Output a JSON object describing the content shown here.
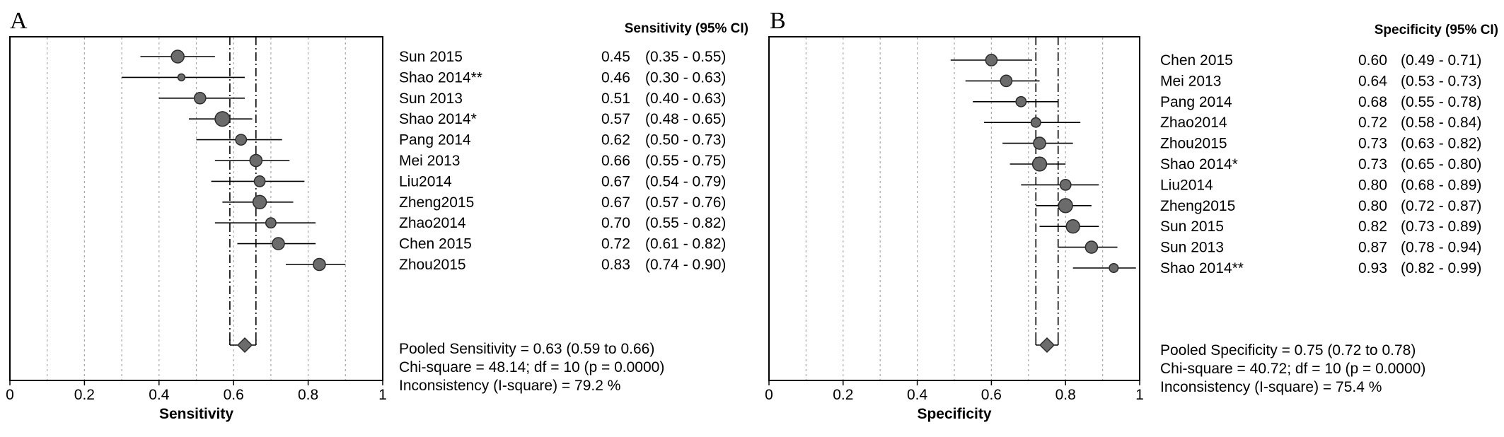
{
  "chart_data": [
    {
      "type": "forest",
      "panel_label": "A",
      "column_header": "Sensitivity (95% CI)",
      "xlabel": "Sensitivity",
      "xlim": [
        0,
        1
      ],
      "xticks": [
        "0",
        "0.2",
        "0.4",
        "0.6",
        "0.8",
        "1"
      ],
      "grid": true,
      "pooled": {
        "estimate": 0.63,
        "ci_low": 0.59,
        "ci_high": 0.66
      },
      "studies": [
        {
          "name": "Sun 2015",
          "value": "0.45",
          "ci": "(0.35 - 0.55)",
          "est": 0.45,
          "lo": 0.35,
          "hi": 0.55,
          "weight": 1.0
        },
        {
          "name": "Shao 2014**",
          "value": "0.46",
          "ci": "(0.30 - 0.63)",
          "est": 0.46,
          "lo": 0.3,
          "hi": 0.63,
          "weight": 0.55
        },
        {
          "name": "Sun 2013",
          "value": "0.51",
          "ci": "(0.40 - 0.63)",
          "est": 0.51,
          "lo": 0.4,
          "hi": 0.63,
          "weight": 0.9
        },
        {
          "name": "Shao 2014*",
          "value": "0.57",
          "ci": "(0.48 - 0.65)",
          "est": 0.57,
          "lo": 0.48,
          "hi": 0.65,
          "weight": 1.15
        },
        {
          "name": "Pang 2014",
          "value": "0.62",
          "ci": "(0.50 - 0.73)",
          "est": 0.62,
          "lo": 0.5,
          "hi": 0.73,
          "weight": 0.85
        },
        {
          "name": "Mei 2013",
          "value": "0.66",
          "ci": "(0.55 - 0.75)",
          "est": 0.66,
          "lo": 0.55,
          "hi": 0.75,
          "weight": 0.95
        },
        {
          "name": "Liu2014",
          "value": "0.67",
          "ci": "(0.54 - 0.79)",
          "est": 0.67,
          "lo": 0.54,
          "hi": 0.79,
          "weight": 0.85
        },
        {
          "name": "Zheng2015",
          "value": "0.67",
          "ci": "(0.57 - 0.76)",
          "est": 0.67,
          "lo": 0.57,
          "hi": 0.76,
          "weight": 1.05
        },
        {
          "name": "Zhao2014",
          "value": "0.70",
          "ci": "(0.55 - 0.82)",
          "est": 0.7,
          "lo": 0.55,
          "hi": 0.82,
          "weight": 0.8
        },
        {
          "name": "Chen 2015",
          "value": "0.72",
          "ci": "(0.61 - 0.82)",
          "est": 0.72,
          "lo": 0.61,
          "hi": 0.82,
          "weight": 0.95
        },
        {
          "name": "Zhou2015",
          "value": "0.83",
          "ci": "(0.74 - 0.90)",
          "est": 0.83,
          "lo": 0.74,
          "hi": 0.9,
          "weight": 0.95
        }
      ],
      "summary_lines": [
        "Pooled Sensitivity = 0.63 (0.59 to 0.66)",
        "Chi-square = 48.14; df =  10 (p = 0.0000)",
        "Inconsistency (I-square) = 79.2 %"
      ]
    },
    {
      "type": "forest",
      "panel_label": "B",
      "column_header": "Specificity (95% CI)",
      "xlabel": "Specificity",
      "xlim": [
        0,
        1
      ],
      "xticks": [
        "0",
        "0.2",
        "0.4",
        "0.6",
        "0.8",
        "1"
      ],
      "grid": true,
      "pooled": {
        "estimate": 0.75,
        "ci_low": 0.72,
        "ci_high": 0.78
      },
      "studies": [
        {
          "name": "Chen 2015",
          "value": "0.60",
          "ci": "(0.49 - 0.71)",
          "est": 0.6,
          "lo": 0.49,
          "hi": 0.71,
          "weight": 0.9
        },
        {
          "name": "Mei 2013",
          "value": "0.64",
          "ci": "(0.53 - 0.73)",
          "est": 0.64,
          "lo": 0.53,
          "hi": 0.73,
          "weight": 0.9
        },
        {
          "name": "Pang 2014",
          "value": "0.68",
          "ci": "(0.55 - 0.78)",
          "est": 0.68,
          "lo": 0.55,
          "hi": 0.78,
          "weight": 0.8
        },
        {
          "name": "Zhao2014",
          "value": "0.72",
          "ci": "(0.58 - 0.84)",
          "est": 0.72,
          "lo": 0.58,
          "hi": 0.84,
          "weight": 0.75
        },
        {
          "name": "Zhou2015",
          "value": "0.73",
          "ci": "(0.63 - 0.82)",
          "est": 0.73,
          "lo": 0.63,
          "hi": 0.82,
          "weight": 0.95
        },
        {
          "name": "Shao 2014*",
          "value": "0.73",
          "ci": "(0.65 - 0.80)",
          "est": 0.73,
          "lo": 0.65,
          "hi": 0.8,
          "weight": 1.1
        },
        {
          "name": "Liu2014",
          "value": "0.80",
          "ci": "(0.68 - 0.89)",
          "est": 0.8,
          "lo": 0.68,
          "hi": 0.89,
          "weight": 0.85
        },
        {
          "name": "Zheng2015",
          "value": "0.80",
          "ci": "(0.72 - 0.87)",
          "est": 0.8,
          "lo": 0.72,
          "hi": 0.87,
          "weight": 1.1
        },
        {
          "name": "Sun 2015",
          "value": "0.82",
          "ci": "(0.73 - 0.89)",
          "est": 0.82,
          "lo": 0.73,
          "hi": 0.89,
          "weight": 1.05
        },
        {
          "name": "Sun 2013",
          "value": "0.87",
          "ci": "(0.78 - 0.94)",
          "est": 0.87,
          "lo": 0.78,
          "hi": 0.94,
          "weight": 0.95
        },
        {
          "name": "Shao 2014**",
          "value": "0.93",
          "ci": "(0.82 - 0.99)",
          "est": 0.93,
          "lo": 0.82,
          "hi": 0.99,
          "weight": 0.7
        }
      ],
      "summary_lines": [
        "Pooled Specificity = 0.75 (0.72 to 0.78)",
        "Chi-square = 40.72; df =  10 (p = 0.0000)",
        "Inconsistency (I-square) = 75.4 %"
      ]
    }
  ],
  "colors": {
    "marker_fill": "#6b6b6b",
    "marker_stroke": "#2b2b2b",
    "grid": "#a8a8a8",
    "frame": "#000000",
    "pooled_line": "#000000"
  }
}
